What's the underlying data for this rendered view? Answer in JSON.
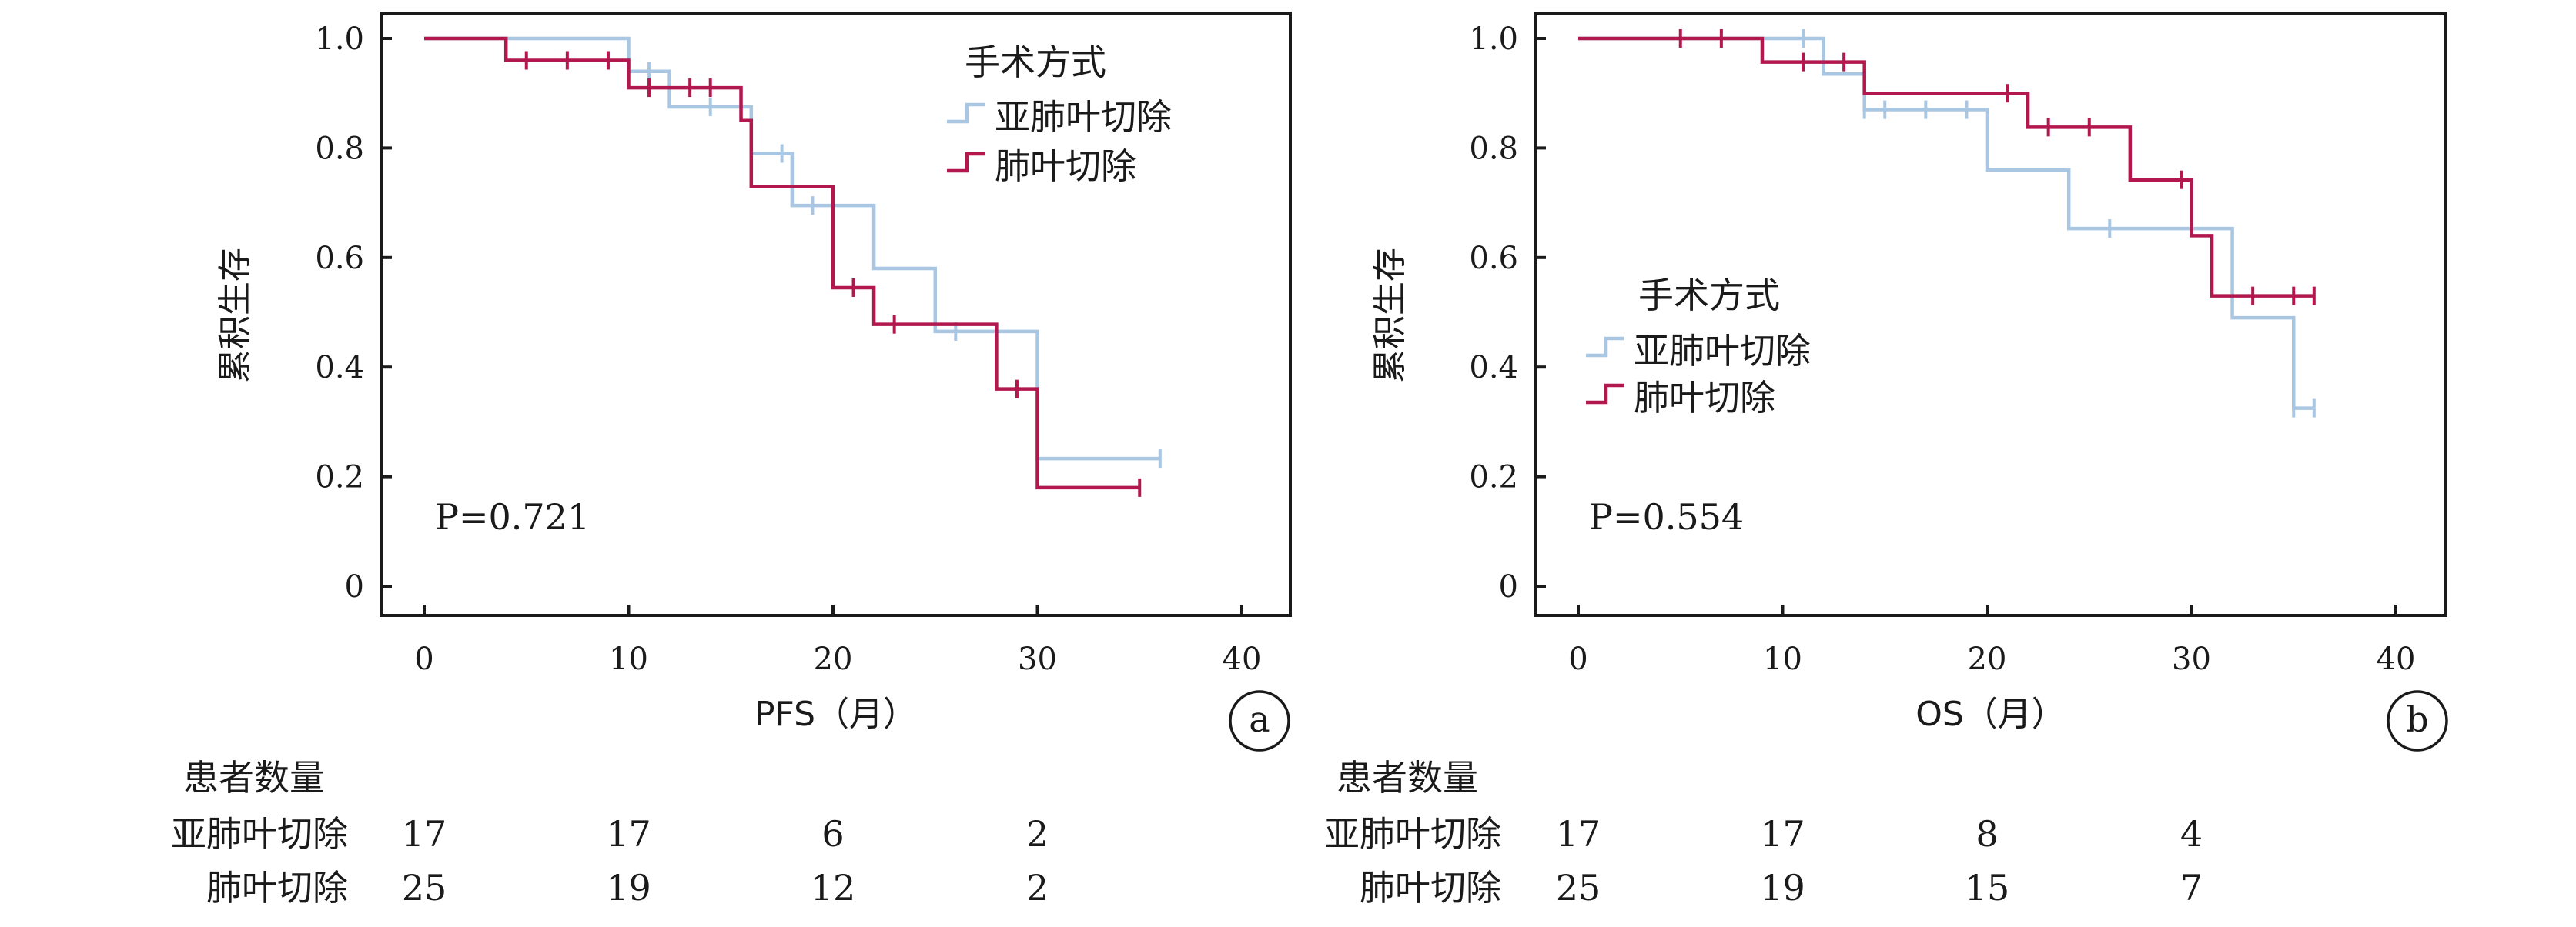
{
  "colors": {
    "sublobar": "#a9c6e3",
    "lobar": "#b2184e",
    "axis": "#1a1a1a"
  },
  "risk_header": "患者数量",
  "chart_data": [
    {
      "type": "line",
      "subtype": "kaplan-meier",
      "panel_label": "a",
      "xlabel": "PFS（月）",
      "ylabel": "累积生存",
      "xlim": [
        0,
        40
      ],
      "ylim": [
        0,
        1.0
      ],
      "x_ticks": [
        "0",
        "10",
        "20",
        "30",
        "40"
      ],
      "y_ticks": [
        "0",
        "0.2",
        "0.4",
        "0.6",
        "0.8",
        "1.0"
      ],
      "legend_title": "手术方式",
      "legend_position": "top-right",
      "annotation": "P=0.721",
      "series": [
        {
          "name": "亚肺叶切除",
          "steps": [
            [
              0,
              1.0
            ],
            [
              10,
              0.94
            ],
            [
              12,
              0.875
            ],
            [
              16,
              0.79
            ],
            [
              18,
              0.695
            ],
            [
              22,
              0.58
            ],
            [
              25,
              0.465
            ],
            [
              30,
              0.233
            ],
            [
              36,
              0.233
            ]
          ],
          "censored": [
            [
              11,
              0.94
            ],
            [
              14,
              0.875
            ],
            [
              17.5,
              0.79
            ],
            [
              19,
              0.695
            ],
            [
              26,
              0.465
            ],
            [
              36,
              0.233
            ]
          ],
          "risk": [
            "17",
            "17",
            "6",
            "2"
          ]
        },
        {
          "name": "肺叶切除",
          "steps": [
            [
              0,
              1.0
            ],
            [
              4,
              0.96
            ],
            [
              10,
              0.91
            ],
            [
              15.5,
              0.85
            ],
            [
              16,
              0.73
            ],
            [
              20,
              0.545
            ],
            [
              22,
              0.478
            ],
            [
              28,
              0.36
            ],
            [
              30,
              0.18
            ],
            [
              35,
              0.18
            ]
          ],
          "censored": [
            [
              5,
              0.96
            ],
            [
              7,
              0.96
            ],
            [
              9,
              0.96
            ],
            [
              11,
              0.91
            ],
            [
              13,
              0.91
            ],
            [
              14,
              0.91
            ],
            [
              21,
              0.545
            ],
            [
              23,
              0.478
            ],
            [
              29,
              0.36
            ],
            [
              35,
              0.18
            ]
          ],
          "risk": [
            "25",
            "19",
            "12",
            "2"
          ]
        }
      ]
    },
    {
      "type": "line",
      "subtype": "kaplan-meier",
      "panel_label": "b",
      "xlabel": "OS（月）",
      "ylabel": "累积生存",
      "xlim": [
        0,
        40
      ],
      "ylim": [
        0,
        1.0
      ],
      "x_ticks": [
        "0",
        "10",
        "20",
        "30",
        "40"
      ],
      "y_ticks": [
        "0",
        "0.2",
        "0.4",
        "0.6",
        "0.8",
        "1.0"
      ],
      "legend_title": "手术方式",
      "legend_position": "center-left",
      "annotation": "P=0.554",
      "series": [
        {
          "name": "亚肺叶切除",
          "steps": [
            [
              0,
              1.0
            ],
            [
              12,
              0.935
            ],
            [
              14,
              0.87
            ],
            [
              20,
              0.76
            ],
            [
              24,
              0.653
            ],
            [
              32,
              0.49
            ],
            [
              35,
              0.325
            ],
            [
              36,
              0.325
            ]
          ],
          "censored": [
            [
              11,
              1.0
            ],
            [
              14,
              0.87
            ],
            [
              15,
              0.87
            ],
            [
              17,
              0.87
            ],
            [
              19,
              0.87
            ],
            [
              26,
              0.653
            ],
            [
              35,
              0.325
            ],
            [
              36,
              0.325
            ]
          ],
          "risk": [
            "17",
            "17",
            "8",
            "4"
          ]
        },
        {
          "name": "肺叶切除",
          "steps": [
            [
              0,
              1.0
            ],
            [
              9,
              0.957
            ],
            [
              14,
              0.9
            ],
            [
              22,
              0.838
            ],
            [
              27,
              0.742
            ],
            [
              30,
              0.64
            ],
            [
              31,
              0.53
            ],
            [
              36,
              0.53
            ]
          ],
          "censored": [
            [
              5,
              1.0
            ],
            [
              7,
              1.0
            ],
            [
              11,
              0.957
            ],
            [
              13,
              0.957
            ],
            [
              21,
              0.9
            ],
            [
              23,
              0.838
            ],
            [
              25,
              0.838
            ],
            [
              29.5,
              0.742
            ],
            [
              33,
              0.53
            ],
            [
              35,
              0.53
            ],
            [
              36,
              0.53
            ]
          ],
          "risk": [
            "25",
            "19",
            "15",
            "7"
          ]
        }
      ]
    }
  ]
}
